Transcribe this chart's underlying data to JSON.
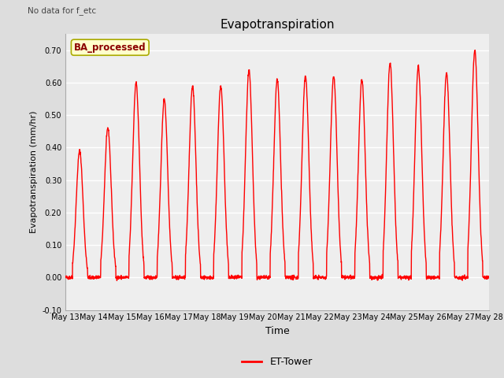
{
  "title": "Evapotranspiration",
  "xlabel": "Time",
  "ylabel": "Evapotranspiration (mm/hr)",
  "ylim": [
    -0.1,
    0.75
  ],
  "yticks": [
    -0.1,
    0.0,
    0.1,
    0.2,
    0.3,
    0.4,
    0.5,
    0.6,
    0.7
  ],
  "ytick_labels": [
    "-0.10",
    "0.00",
    "0.10",
    "0.20",
    "0.30",
    "0.40",
    "0.50",
    "0.60",
    "0.70"
  ],
  "line_color": "#ff0000",
  "line_width": 1.0,
  "legend_label": "ET-Tower",
  "fig_bg_color": "#dddddd",
  "plot_bg_color": "#eeeeee",
  "text_annotations": [
    "No data for f_et",
    "No data for f_etc"
  ],
  "box_label": "BA_processed",
  "n_days": 15,
  "xtick_labels": [
    "May 13",
    "May 14",
    "May 15",
    "May 16",
    "May 17",
    "May 18",
    "May 19",
    "May 20",
    "May 21",
    "May 22",
    "May 23",
    "May 24",
    "May 25",
    "May 26",
    "May 27",
    "May 28"
  ],
  "day_peaks": [
    0.39,
    0.46,
    0.6,
    0.55,
    0.59,
    0.59,
    0.64,
    0.61,
    0.62,
    0.62,
    0.61,
    0.66,
    0.65,
    0.63,
    0.7
  ]
}
